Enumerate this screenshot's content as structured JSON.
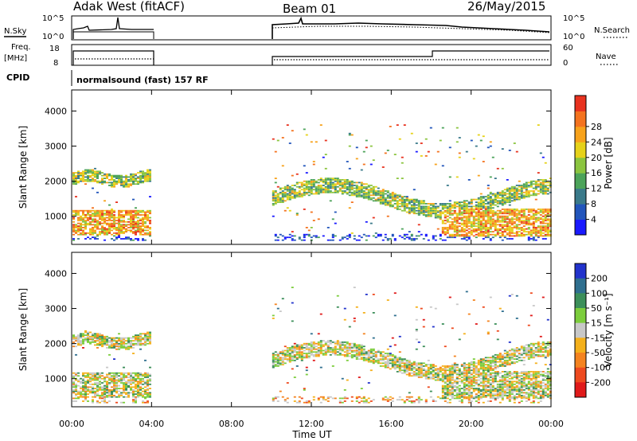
{
  "header": {
    "radar": "Adak West (fitACF)",
    "beam": "Beam 01",
    "date": "26/May/2015"
  },
  "top_panels": {
    "nsky": {
      "label": "N.Sky",
      "ticks": [
        "10^5",
        "10^0"
      ]
    },
    "nsearch": {
      "label": "N.Search",
      "ticks": [
        "10^5",
        "10^0"
      ]
    },
    "freq": {
      "label_line1": "Freq.",
      "label_line2": "[MHz]",
      "ticks": [
        "18",
        "8"
      ]
    },
    "nave": {
      "label": "Nave",
      "ticks": [
        "60",
        "0"
      ]
    },
    "cpid": {
      "label": "CPID",
      "value": "normalsound (fast) 157 RF"
    }
  },
  "chart_data": [
    {
      "type": "heatmap",
      "panel": "power",
      "xlabel": "",
      "ylabel": "Slant Range [km]",
      "ylim": [
        200,
        4600
      ],
      "yticks": [
        "1000",
        "2000",
        "3000",
        "4000"
      ],
      "grid": false,
      "colorbar": {
        "label": "Power [dB]",
        "ticks": [
          "4",
          "8",
          "12",
          "16",
          "20",
          "24",
          "28"
        ],
        "colors": [
          "#1a1aff",
          "#2255bb",
          "#3a7a8a",
          "#4ca35a",
          "#8bc53f",
          "#e6d21a",
          "#f7a21b",
          "#f4731f",
          "#e8321f"
        ]
      },
      "segments": [
        {
          "t_start": "00:00",
          "t_end": "04:00",
          "range_km": [
            300,
            2400
          ]
        },
        {
          "t_start": "10:00",
          "t_end": "24:00",
          "range_km": [
            300,
            3600
          ]
        }
      ]
    },
    {
      "type": "heatmap",
      "panel": "velocity",
      "xlabel": "Time UT",
      "ylabel": "Slant Range [km]",
      "ylim": [
        200,
        4600
      ],
      "yticks": [
        "1000",
        "2000",
        "3000",
        "4000"
      ],
      "xticks": [
        "00:00",
        "04:00",
        "08:00",
        "12:00",
        "16:00",
        "20:00",
        "00:00"
      ],
      "grid": false,
      "colorbar": {
        "label": "Velocity [m s⁻¹]",
        "ticks": [
          "200",
          "100",
          "50",
          "15",
          "-15",
          "-50",
          "-100",
          "-200"
        ],
        "colors": [
          "#2233cc",
          "#2f6f8f",
          "#3c8f5a",
          "#7ccd3c",
          "#c8c8c8",
          "#f4b01b",
          "#f4831f",
          "#ee4a1f",
          "#e01a1a"
        ]
      },
      "segments": [
        {
          "t_start": "00:00",
          "t_end": "04:00",
          "range_km": [
            300,
            2400
          ]
        },
        {
          "t_start": "10:00",
          "t_end": "24:00",
          "range_km": [
            300,
            3600
          ]
        }
      ]
    }
  ]
}
